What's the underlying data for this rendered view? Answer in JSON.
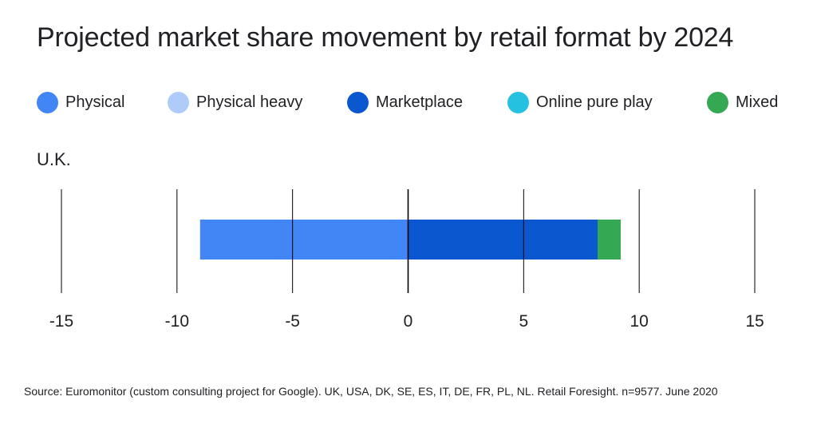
{
  "title": "Projected market share movement by retail format by 2024",
  "source": "Source: Euromonitor (custom consulting project for Google). UK, USA, DK, SE, ES, IT, DE, FR, PL, NL. Retail Foresight. n=9577. June 2020",
  "legend": [
    {
      "label": "Physical",
      "color": "#4285F4"
    },
    {
      "label": "Physical heavy",
      "color": "#AECBFA"
    },
    {
      "label": "Marketplace",
      "color": "#0B57D0"
    },
    {
      "label": "Online pure play",
      "color": "#24C1E0"
    },
    {
      "label": "Mixed",
      "color": "#34A853"
    }
  ],
  "chart_data": {
    "type": "bar",
    "orientation": "horizontal",
    "stacked": true,
    "categories": [
      "U.K."
    ],
    "series": [
      {
        "name": "Physical",
        "values": [
          -9.0
        ],
        "color": "#4285F4"
      },
      {
        "name": "Physical heavy",
        "values": [
          0
        ],
        "color": "#AECBFA"
      },
      {
        "name": "Marketplace",
        "values": [
          8.2
        ],
        "color": "#0B57D0"
      },
      {
        "name": "Online pure play",
        "values": [
          0
        ],
        "color": "#24C1E0"
      },
      {
        "name": "Mixed",
        "values": [
          1.0
        ],
        "color": "#34A853"
      }
    ],
    "xlim": [
      -15,
      15
    ],
    "xticks": [
      -15,
      -10,
      -5,
      0,
      5,
      10,
      15
    ],
    "xtick_labels": [
      "-15",
      "-10",
      "-5",
      "0",
      "5",
      "10",
      "15"
    ],
    "grid": true,
    "legend_position": "top",
    "title": "Projected market share movement by retail format by 2024"
  }
}
